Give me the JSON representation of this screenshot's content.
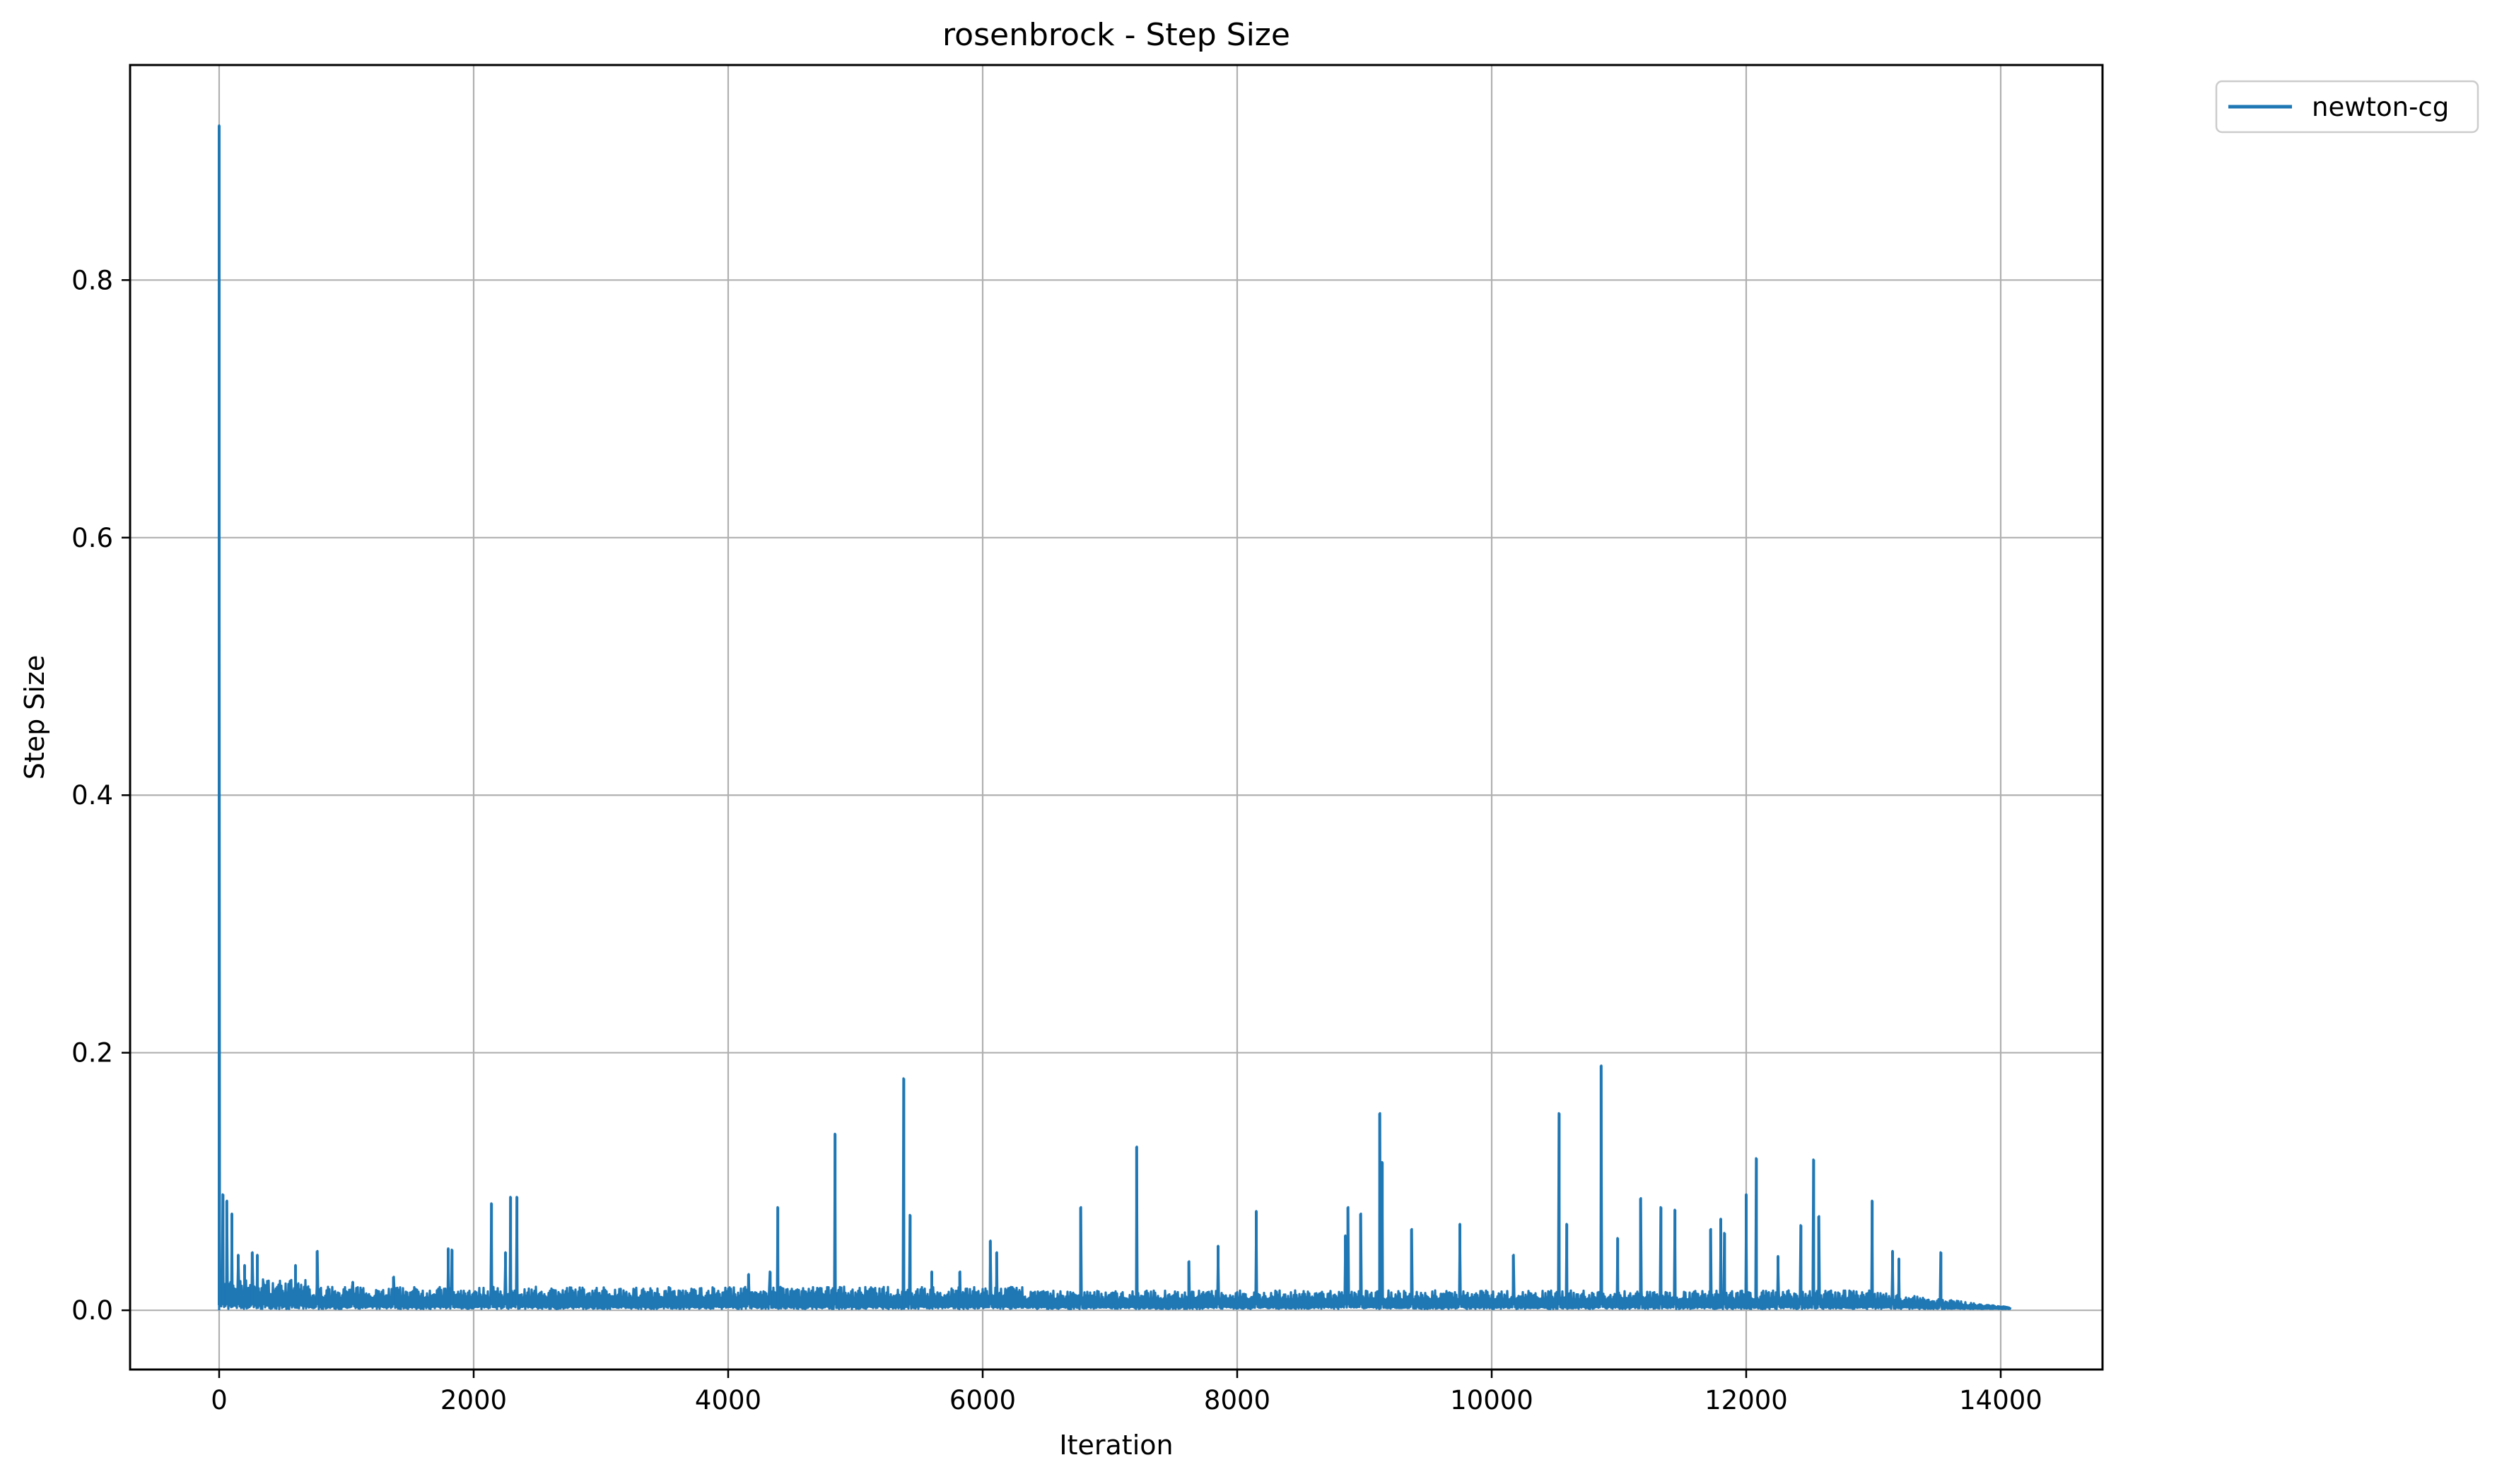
{
  "chart_data": {
    "type": "line",
    "title": "rosenbrock - Step Size",
    "xlabel": "Iteration",
    "ylabel": "Step Size",
    "xlim": [
      -700,
      14800
    ],
    "ylim": [
      -0.046,
      0.967
    ],
    "x_ticks": [
      0,
      2000,
      4000,
      6000,
      8000,
      10000,
      12000,
      14000
    ],
    "x_tick_labels": [
      "0",
      "2000",
      "4000",
      "6000",
      "8000",
      "10000",
      "12000",
      "14000"
    ],
    "y_ticks": [
      0.0,
      0.2,
      0.4,
      0.6,
      0.8
    ],
    "y_tick_labels": [
      "0.0",
      "0.2",
      "0.4",
      "0.6",
      "0.8"
    ],
    "grid": true,
    "legend_position": "upper right, outside plot",
    "series_color": "#1f77b4",
    "series": [
      {
        "name": "newton-cg",
        "color": "#1f77b4",
        "x_max": 14080,
        "peaks": [
          [
            0,
            0.92
          ],
          [
            30,
            0.09
          ],
          [
            60,
            0.085
          ],
          [
            100,
            0.075
          ],
          [
            150,
            0.043
          ],
          [
            200,
            0.035
          ],
          [
            260,
            0.045
          ],
          [
            300,
            0.043
          ],
          [
            350,
            0.02
          ],
          [
            600,
            0.035
          ],
          [
            770,
            0.046
          ],
          [
            1050,
            0.022
          ],
          [
            1370,
            0.026
          ],
          [
            1800,
            0.048
          ],
          [
            1830,
            0.047
          ],
          [
            2140,
            0.083
          ],
          [
            2250,
            0.045
          ],
          [
            2290,
            0.088
          ],
          [
            2340,
            0.088
          ],
          [
            4160,
            0.028
          ],
          [
            4330,
            0.03
          ],
          [
            4390,
            0.08
          ],
          [
            4840,
            0.137
          ],
          [
            5380,
            0.18
          ],
          [
            5430,
            0.074
          ],
          [
            5600,
            0.03
          ],
          [
            5820,
            0.03
          ],
          [
            6060,
            0.054
          ],
          [
            6110,
            0.045
          ],
          [
            6770,
            0.08
          ],
          [
            7210,
            0.127
          ],
          [
            7620,
            0.038
          ],
          [
            7850,
            0.05
          ],
          [
            8150,
            0.077
          ],
          [
            8850,
            0.058
          ],
          [
            8870,
            0.08
          ],
          [
            8970,
            0.075
          ],
          [
            9120,
            0.153
          ],
          [
            9140,
            0.115
          ],
          [
            9370,
            0.063
          ],
          [
            9750,
            0.067
          ],
          [
            10170,
            0.043
          ],
          [
            10530,
            0.153
          ],
          [
            10590,
            0.067
          ],
          [
            10860,
            0.19
          ],
          [
            10990,
            0.056
          ],
          [
            11170,
            0.087
          ],
          [
            11330,
            0.08
          ],
          [
            11440,
            0.078
          ],
          [
            11720,
            0.063
          ],
          [
            11800,
            0.071
          ],
          [
            11830,
            0.06
          ],
          [
            12000,
            0.09
          ],
          [
            12080,
            0.118
          ],
          [
            12250,
            0.042
          ],
          [
            12430,
            0.066
          ],
          [
            12530,
            0.117
          ],
          [
            12570,
            0.073
          ],
          [
            12990,
            0.085
          ],
          [
            13150,
            0.046
          ],
          [
            13200,
            0.04
          ],
          [
            13530,
            0.045
          ]
        ],
        "baseline_level": 0.012
      }
    ]
  }
}
